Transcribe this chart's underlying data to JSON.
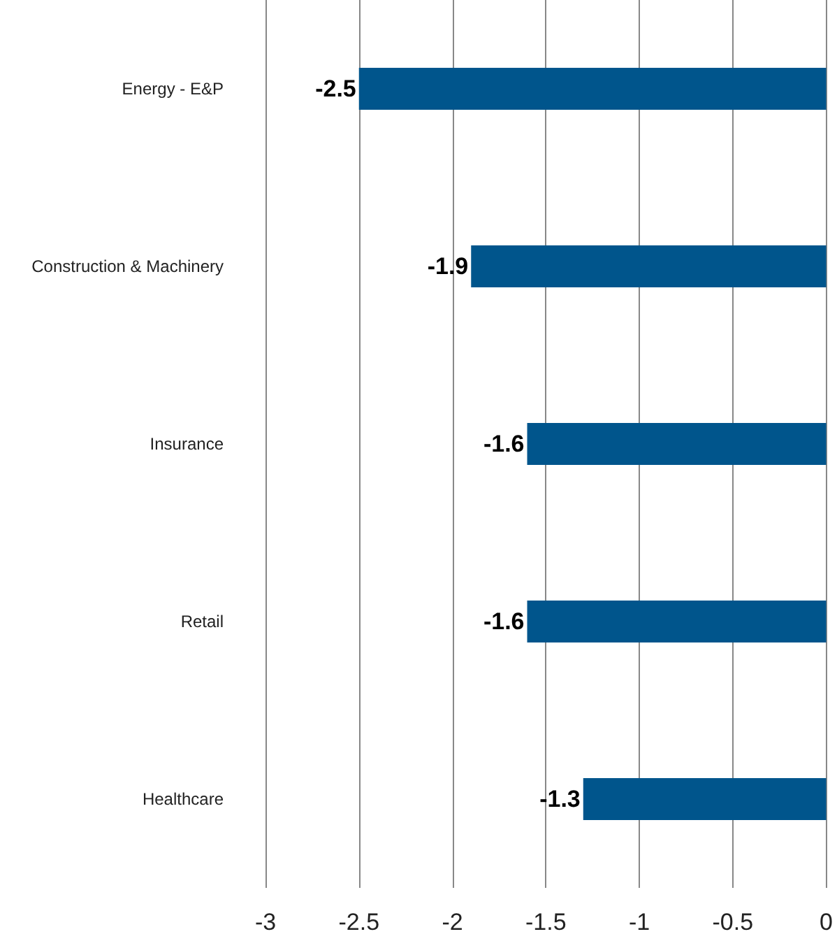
{
  "chart_data": {
    "type": "bar",
    "orientation": "horizontal",
    "categories": [
      "Energy - E&P",
      "Construction & Machinery",
      "Insurance",
      "Retail",
      "Healthcare"
    ],
    "values": [
      -2.5,
      -1.9,
      -1.6,
      -1.6,
      -1.3
    ],
    "color": "#00558c",
    "xlim": [
      -3,
      0
    ],
    "xticks": [
      -3,
      -2.5,
      -2,
      -1.5,
      -1,
      -0.5,
      0
    ],
    "grid": "x",
    "data_labels": true
  }
}
